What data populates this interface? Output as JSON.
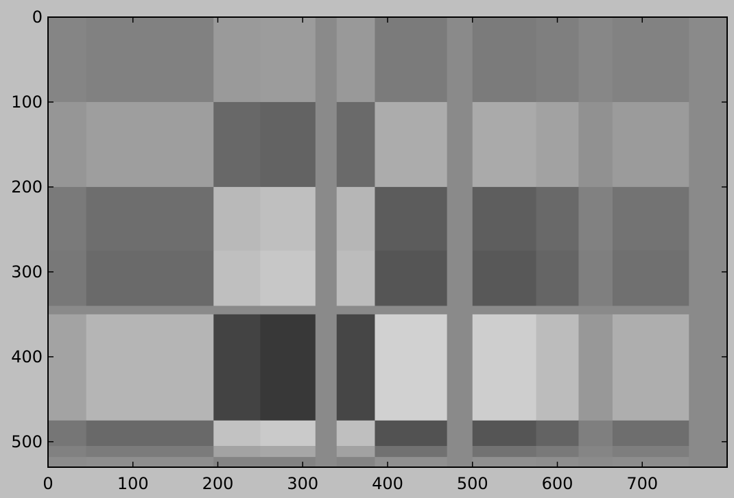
{
  "colors": {
    "figure_background": "#bfbfbf",
    "axes_frame": "#000000",
    "colormap": "gray"
  },
  "chart_data": {
    "type": "heatmap",
    "title": "",
    "xlabel": "",
    "ylabel": "",
    "xlim": [
      0,
      800
    ],
    "ylim": [
      530,
      0
    ],
    "y_axis_inverted": true,
    "grid": false,
    "legend": "none",
    "colormap": "gray",
    "xticks": [
      0,
      100,
      200,
      300,
      400,
      500,
      600,
      700
    ],
    "yticks": [
      0,
      100,
      200,
      300,
      400,
      500
    ],
    "xtick_labels": [
      "0",
      "100",
      "200",
      "300",
      "400",
      "500",
      "600",
      "700"
    ],
    "ytick_labels": [
      "0",
      "100",
      "200",
      "300",
      "400",
      "500"
    ],
    "column_bands": [
      {
        "x": [
          0,
          45
        ],
        "weight": 0.35
      },
      {
        "x": [
          45,
          195
        ],
        "weight": 0.6
      },
      {
        "x": [
          195,
          250
        ],
        "weight": -1.0
      },
      {
        "x": [
          250,
          315
        ],
        "weight": -1.15
      },
      {
        "x": [
          315,
          340
        ],
        "weight": 0.0
      },
      {
        "x": [
          340,
          385
        ],
        "weight": -0.95
      },
      {
        "x": [
          385,
          470
        ],
        "weight": 1.0
      },
      {
        "x": [
          470,
          500
        ],
        "weight": 0.0
      },
      {
        "x": [
          500,
          575
        ],
        "weight": 0.95
      },
      {
        "x": [
          575,
          625
        ],
        "weight": 0.7
      },
      {
        "x": [
          625,
          665
        ],
        "weight": 0.2
      },
      {
        "x": [
          665,
          755
        ],
        "weight": 0.5
      },
      {
        "x": [
          755,
          800
        ],
        "weight": 0.0
      }
    ],
    "row_bands": [
      {
        "y": [
          0,
          100
        ],
        "weight": -0.25
      },
      {
        "y": [
          100,
          200
        ],
        "weight": 0.55
      },
      {
        "y": [
          200,
          275
        ],
        "weight": -0.75
      },
      {
        "y": [
          275,
          340
        ],
        "weight": -0.85
      },
      {
        "y": [
          340,
          350
        ],
        "weight": 0.0
      },
      {
        "y": [
          350,
          475
        ],
        "weight": 1.15
      },
      {
        "y": [
          475,
          505
        ],
        "weight": -0.9
      },
      {
        "y": [
          505,
          518
        ],
        "weight": -0.4
      },
      {
        "y": [
          518,
          530
        ],
        "weight": 0.1
      }
    ]
  }
}
